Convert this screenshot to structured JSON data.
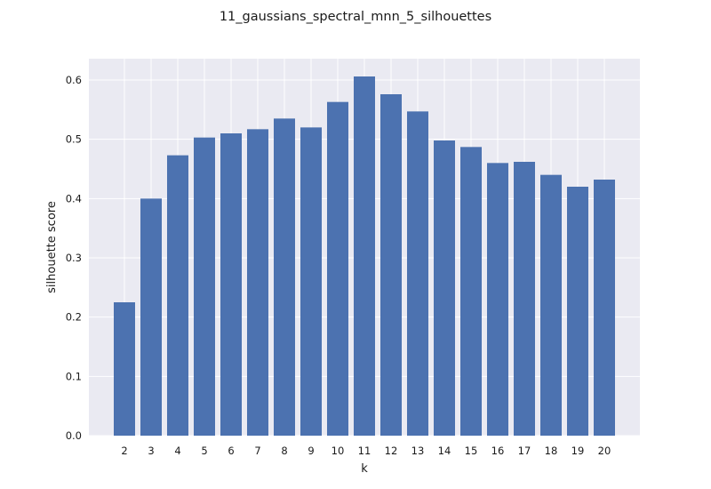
{
  "chart_data": {
    "type": "bar",
    "title": "11_gaussians_spectral_mnn_5_silhouettes",
    "xlabel": "k",
    "ylabel": "silhouette score",
    "categories": [
      "2",
      "3",
      "4",
      "5",
      "6",
      "7",
      "8",
      "9",
      "10",
      "11",
      "12",
      "13",
      "14",
      "15",
      "16",
      "17",
      "18",
      "19",
      "20"
    ],
    "values": [
      0.225,
      0.4,
      0.473,
      0.503,
      0.51,
      0.517,
      0.535,
      0.52,
      0.563,
      0.606,
      0.576,
      0.547,
      0.498,
      0.487,
      0.46,
      0.462,
      0.44,
      0.42,
      0.432
    ],
    "y_ticks": [
      "0.0",
      "0.1",
      "0.2",
      "0.3",
      "0.4",
      "0.5",
      "0.6"
    ],
    "ylim": [
      0,
      0.636
    ],
    "grid": true,
    "bar_color": "#4c72b0",
    "background_color": "#eaeaf2",
    "grid_color": "#ffffff"
  }
}
